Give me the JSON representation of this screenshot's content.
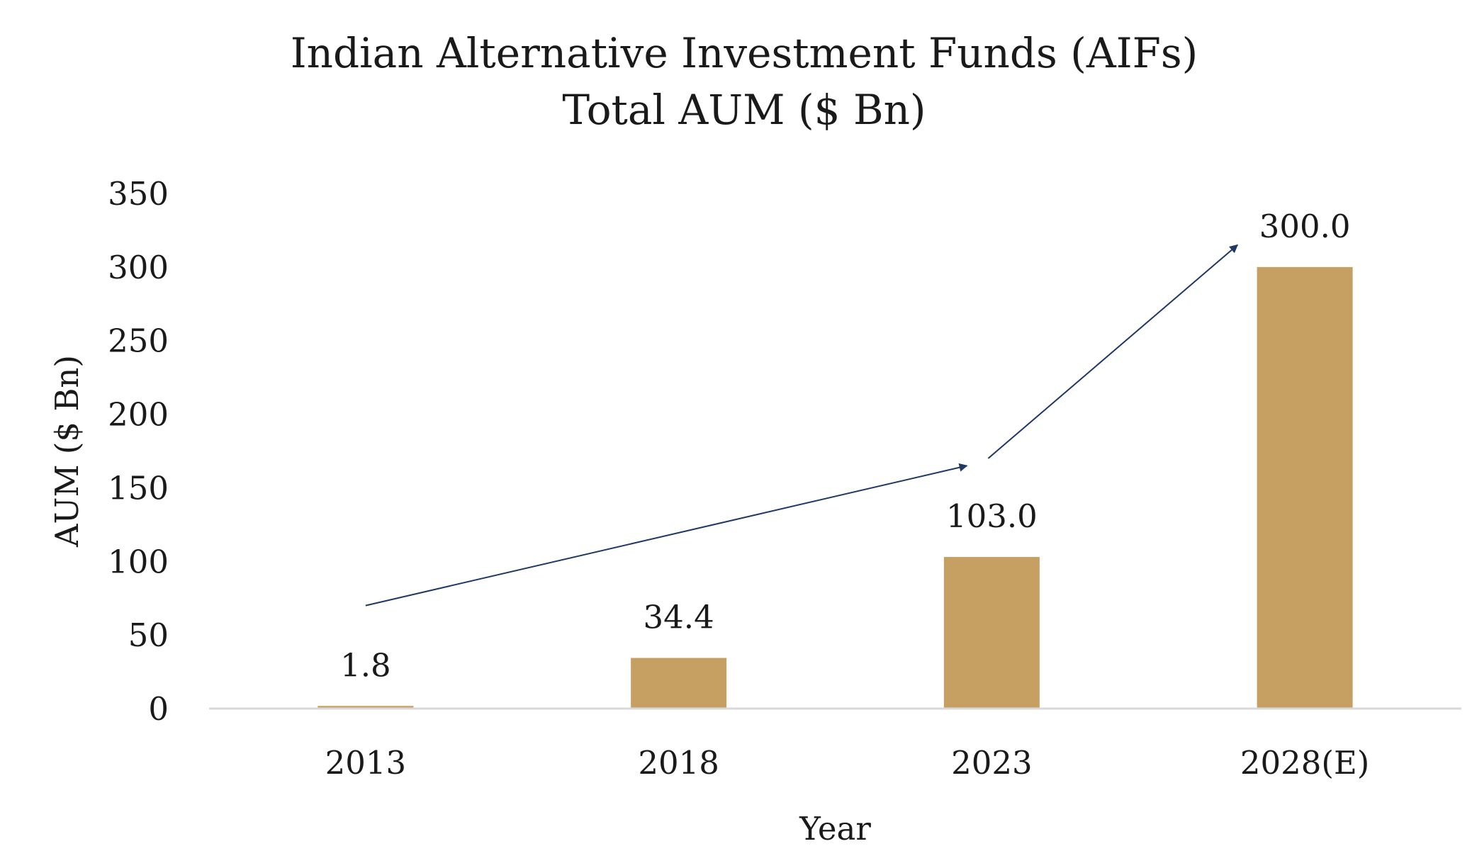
{
  "chart_data": {
    "type": "bar",
    "title_lines": [
      "Indian Alternative Investment Funds (AIFs)",
      "Total AUM ($ Bn)"
    ],
    "xlabel": "Year",
    "ylabel": "AUM ($ Bn)",
    "categories": [
      "2013",
      "2018",
      "2023",
      "2028(E)"
    ],
    "values": [
      1.8,
      34.4,
      103.0,
      300.0
    ],
    "data_labels": [
      "1.8",
      "34.4",
      "103.0",
      "300.0"
    ],
    "ylim": [
      0,
      350
    ],
    "yticks": [
      0,
      50,
      100,
      150,
      200,
      250,
      300,
      350
    ],
    "ytick_labels": [
      "0",
      "50",
      "100",
      "150",
      "200",
      "250",
      "300",
      "350"
    ],
    "grid": false,
    "legend": "none",
    "annotations": [
      {
        "type": "arrow",
        "from_category": 0,
        "to_category": 2,
        "from_value": 70,
        "to_value": 165
      },
      {
        "type": "arrow",
        "from_category": 2,
        "to_category": 3,
        "from_value": 170,
        "to_value": 315
      }
    ],
    "colors": {
      "bar": "#c6a063",
      "arrow": "#1f3864",
      "axis": "#d9d9d9",
      "text": "#1a1a1a"
    }
  }
}
